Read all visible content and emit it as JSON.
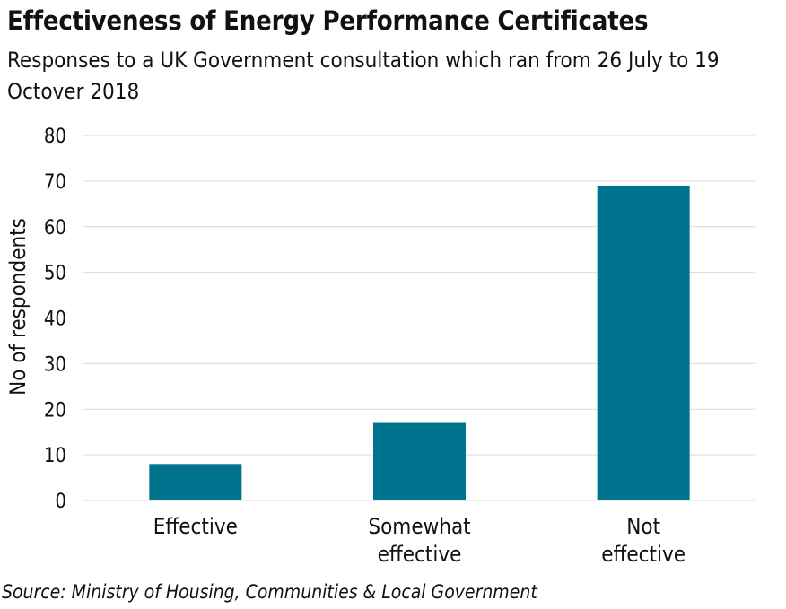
{
  "header": {
    "title": "Effectiveness of Energy Performance Certificates",
    "subtitle": "Responses to a UK Government consultation which ran from 26 July to 19 Octover 2018"
  },
  "footer": {
    "source": "Source: Ministry of Housing, Communities & Local Government"
  },
  "chart_data": {
    "type": "bar",
    "title": "Effectiveness of Energy Performance Certificates",
    "subtitle": "Responses to a UK Government consultation which ran from 26 July to 19 Octover 2018",
    "categories": [
      [
        "Effective"
      ],
      [
        "Somewhat",
        "effective"
      ],
      [
        "Not",
        "effective"
      ]
    ],
    "values": [
      8,
      17,
      69
    ],
    "xlabel": "",
    "ylabel": "No of respondents",
    "ylim": [
      0,
      80
    ],
    "yticks": [
      0,
      10,
      20,
      30,
      40,
      50,
      60,
      70,
      80
    ],
    "grid": true,
    "bar_color": "#00738f",
    "grid_color": "#d9d9d9"
  }
}
